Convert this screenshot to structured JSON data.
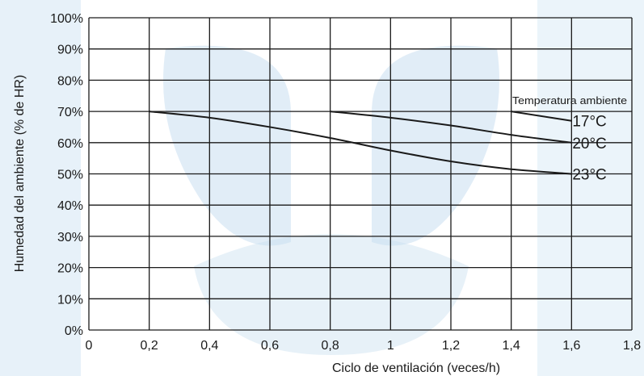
{
  "chart_data": {
    "type": "line",
    "xlabel": "Ciclo de ventilación (veces/h)",
    "ylabel": "Humedad del ambiente (% de HR)",
    "xlim": [
      0,
      1.8
    ],
    "ylim": [
      0,
      100
    ],
    "x_ticks": [
      "0",
      "0,2",
      "0,4",
      "0,6",
      "0,8",
      "1",
      "1,2",
      "1,4",
      "1,6",
      "1,8"
    ],
    "y_ticks": [
      "0%",
      "10%",
      "20%",
      "30%",
      "40%",
      "50%",
      "60%",
      "70%",
      "80%",
      "90%",
      "100%"
    ],
    "grid": true,
    "legend_title": "Temperatura ambiente",
    "series": [
      {
        "name": "17°C",
        "x": [
          1.4,
          1.6
        ],
        "y": [
          70,
          67
        ]
      },
      {
        "name": "20°C",
        "x": [
          0.8,
          1.0,
          1.2,
          1.4,
          1.6
        ],
        "y": [
          70,
          68,
          65.5,
          62.5,
          60
        ]
      },
      {
        "name": "23°C",
        "x": [
          0.2,
          0.4,
          0.6,
          0.8,
          1.0,
          1.2,
          1.4,
          1.6
        ],
        "y": [
          70,
          68,
          65,
          61.5,
          57.5,
          54,
          51.5,
          50
        ]
      }
    ],
    "colors": {
      "line": "#1a1a1a",
      "grid": "#1a1a1a",
      "watermark": "#c9dff0"
    }
  }
}
